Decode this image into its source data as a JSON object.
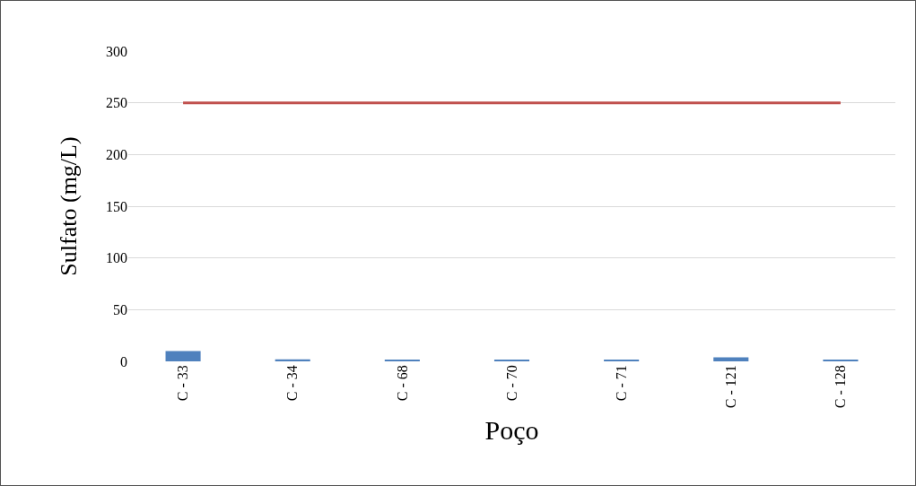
{
  "chart_data": {
    "type": "bar",
    "xlabel": "Poço",
    "ylabel": "Sulfato (mg/L)",
    "categories": [
      "C - 33",
      "C - 34",
      "C - 68",
      "C - 70",
      "C - 71",
      "C - 121",
      "C - 128"
    ],
    "series": [
      {
        "color": "#4f81bd",
        "values": [
          10,
          2,
          1,
          1,
          1,
          4,
          1
        ]
      },
      {
        "type": "line",
        "color": "#c0504d",
        "values": [
          250,
          250,
          250,
          250,
          250,
          250,
          250
        ],
        "marker": "none"
      }
    ],
    "ylim": [
      0,
      300
    ],
    "yticks": [
      0,
      50,
      100,
      150,
      200,
      250,
      300
    ],
    "grid": "y"
  }
}
